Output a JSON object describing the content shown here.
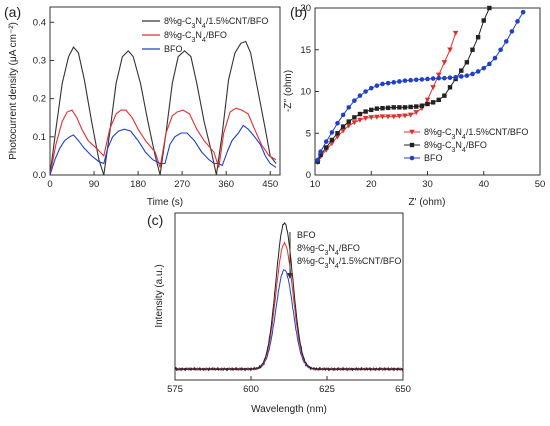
{
  "chart_data": [
    {
      "panel": "(a)",
      "type": "line",
      "xlabel": "Time (s)",
      "ylabel": "Photocurrent density (μA cm⁻²)",
      "xlim": [
        0,
        470
      ],
      "ylim": [
        0,
        0.44
      ],
      "xticks": [
        "0",
        "90",
        "180",
        "270",
        "360",
        "450"
      ],
      "yticks": [
        "0.0",
        "0.1",
        "0.2",
        "0.3",
        "0.4"
      ],
      "legend_position": "top-right",
      "series": [
        {
          "name": "8%g-C3N4/1.5%CNT/BFO",
          "color": "#333333",
          "x": [
            0,
            12,
            25,
            38,
            48,
            58,
            70,
            85,
            100,
            110,
            122,
            135,
            148,
            160,
            170,
            185,
            200,
            215,
            225,
            237,
            250,
            262,
            275,
            288,
            300,
            315,
            330,
            340,
            352,
            365,
            378,
            390,
            400,
            410,
            425,
            440,
            450,
            462
          ],
          "y": [
            0.0,
            0.12,
            0.24,
            0.31,
            0.335,
            0.32,
            0.25,
            0.14,
            0.04,
            0.0,
            0.11,
            0.24,
            0.31,
            0.325,
            0.31,
            0.24,
            0.14,
            0.05,
            0.0,
            0.11,
            0.24,
            0.31,
            0.325,
            0.31,
            0.24,
            0.14,
            0.06,
            0.0,
            0.11,
            0.25,
            0.32,
            0.345,
            0.35,
            0.32,
            0.22,
            0.12,
            0.05,
            0.03
          ]
        },
        {
          "name": "8%g-C3N4/BFO",
          "color": "#e03030",
          "x": [
            0,
            12,
            25,
            35,
            45,
            55,
            65,
            78,
            95,
            110,
            122,
            135,
            145,
            155,
            168,
            180,
            195,
            215,
            225,
            237,
            250,
            260,
            272,
            285,
            300,
            315,
            335,
            345,
            355,
            368,
            380,
            392,
            405,
            418,
            432,
            448,
            462
          ],
          "y": [
            0.0,
            0.08,
            0.14,
            0.165,
            0.17,
            0.15,
            0.12,
            0.09,
            0.07,
            0.05,
            0.12,
            0.16,
            0.17,
            0.17,
            0.15,
            0.12,
            0.09,
            0.06,
            0.02,
            0.11,
            0.155,
            0.165,
            0.17,
            0.16,
            0.12,
            0.09,
            0.06,
            0.02,
            0.11,
            0.165,
            0.175,
            0.17,
            0.16,
            0.12,
            0.08,
            0.05,
            0.04
          ]
        },
        {
          "name": "BFO",
          "color": "#2040c8",
          "x": [
            0,
            10,
            20,
            30,
            40,
            48,
            58,
            70,
            85,
            100,
            110,
            118,
            128,
            140,
            152,
            165,
            180,
            195,
            210,
            225,
            235,
            245,
            255,
            268,
            280,
            295,
            310,
            325,
            335,
            345,
            352,
            362,
            372,
            385,
            395,
            405,
            418,
            430,
            440,
            450,
            462
          ],
          "y": [
            0.0,
            0.04,
            0.07,
            0.09,
            0.1,
            0.105,
            0.09,
            0.07,
            0.05,
            0.035,
            0.03,
            0.07,
            0.1,
            0.115,
            0.12,
            0.115,
            0.09,
            0.06,
            0.04,
            0.03,
            0.03,
            0.08,
            0.1,
            0.11,
            0.11,
            0.09,
            0.06,
            0.04,
            0.03,
            0.03,
            0.025,
            0.06,
            0.09,
            0.11,
            0.13,
            0.12,
            0.1,
            0.08,
            0.05,
            0.03,
            0.02
          ]
        }
      ]
    },
    {
      "panel": "(b)",
      "type": "scatter",
      "xlabel": "Z' (ohm)",
      "ylabel": "-Z'' (ohm)",
      "xlim": [
        10,
        50
      ],
      "ylim": [
        0,
        20
      ],
      "xticks": [
        "10",
        "20",
        "30",
        "40",
        "50"
      ],
      "yticks": [
        "0",
        "5",
        "10",
        "15",
        "20"
      ],
      "legend_position": "bottom-right",
      "series": [
        {
          "name": "8%g-C3N4/1.5%CNT/BFO",
          "color": "#e03030",
          "marker": "triangle-down",
          "x": [
            10.5,
            11,
            12,
            13,
            14,
            15,
            16,
            17,
            18,
            19,
            20,
            21,
            22,
            23,
            24,
            25,
            26,
            27,
            28,
            29,
            30,
            31,
            32,
            33,
            34,
            35
          ],
          "y": [
            1.5,
            2.2,
            3.0,
            3.8,
            4.6,
            5.3,
            5.9,
            6.3,
            6.6,
            6.8,
            6.9,
            6.95,
            7.0,
            7.0,
            7.0,
            7.05,
            7.1,
            7.2,
            7.5,
            8.0,
            9.0,
            10.5,
            12.0,
            13.5,
            15.0,
            17.0
          ]
        },
        {
          "name": "8%g-C3N4/BFO",
          "color": "#222222",
          "marker": "square",
          "x": [
            10.5,
            11,
            12,
            13,
            14,
            15,
            16,
            17,
            18,
            19,
            20,
            21,
            22,
            23,
            24,
            25,
            26,
            27,
            28,
            29,
            30,
            31,
            32,
            33,
            34,
            35,
            36,
            37,
            38,
            39,
            40,
            41
          ],
          "y": [
            1.6,
            2.4,
            3.3,
            4.2,
            5.0,
            5.8,
            6.4,
            6.9,
            7.3,
            7.6,
            7.8,
            7.95,
            8.0,
            8.05,
            8.1,
            8.1,
            8.1,
            8.15,
            8.2,
            8.3,
            8.5,
            8.7,
            9.0,
            9.5,
            10.5,
            11.5,
            12.5,
            13.5,
            15.0,
            16.5,
            18.5,
            20.0
          ]
        },
        {
          "name": "BFO",
          "color": "#2040c8",
          "marker": "circle",
          "x": [
            10.5,
            11,
            12,
            13,
            14,
            15,
            16,
            17,
            18,
            19,
            20,
            21,
            22,
            23,
            24,
            25,
            26,
            27,
            28,
            29,
            30,
            31,
            32,
            33,
            34,
            35,
            36,
            37,
            38,
            39,
            40,
            41,
            42,
            43,
            44,
            45,
            46,
            47
          ],
          "y": [
            1.8,
            2.8,
            4.0,
            5.1,
            6.2,
            7.2,
            8.1,
            8.9,
            9.5,
            10.0,
            10.4,
            10.7,
            10.9,
            11.0,
            11.1,
            11.2,
            11.3,
            11.35,
            11.4,
            11.45,
            11.5,
            11.55,
            11.6,
            11.6,
            11.65,
            11.7,
            11.8,
            11.9,
            12.1,
            12.4,
            12.8,
            13.3,
            14.0,
            15.0,
            16.0,
            17.2,
            18.4,
            19.5
          ]
        }
      ]
    },
    {
      "panel": "(c)",
      "type": "line",
      "xlabel": "Wavelength (nm)",
      "ylabel": "Intensity (a.u.)",
      "xlim": [
        575,
        650
      ],
      "xticks": [
        "575",
        "600",
        "625",
        "650"
      ],
      "legend_position": "top-right",
      "series": [
        {
          "name": "BFO",
          "color": "#222222",
          "center": 611,
          "width": 2.8,
          "peak": 1.0,
          "baseline": 0.02
        },
        {
          "name": "8%g-C3N4/BFO",
          "color": "#e03030",
          "center": 611,
          "width": 2.8,
          "peak": 0.86,
          "baseline": 0.02
        },
        {
          "name": "8%g-C3N4/1.5%CNT/BFO",
          "color": "#2040c8",
          "center": 611,
          "width": 2.8,
          "peak": 0.68,
          "baseline": 0.02
        }
      ]
    }
  ]
}
